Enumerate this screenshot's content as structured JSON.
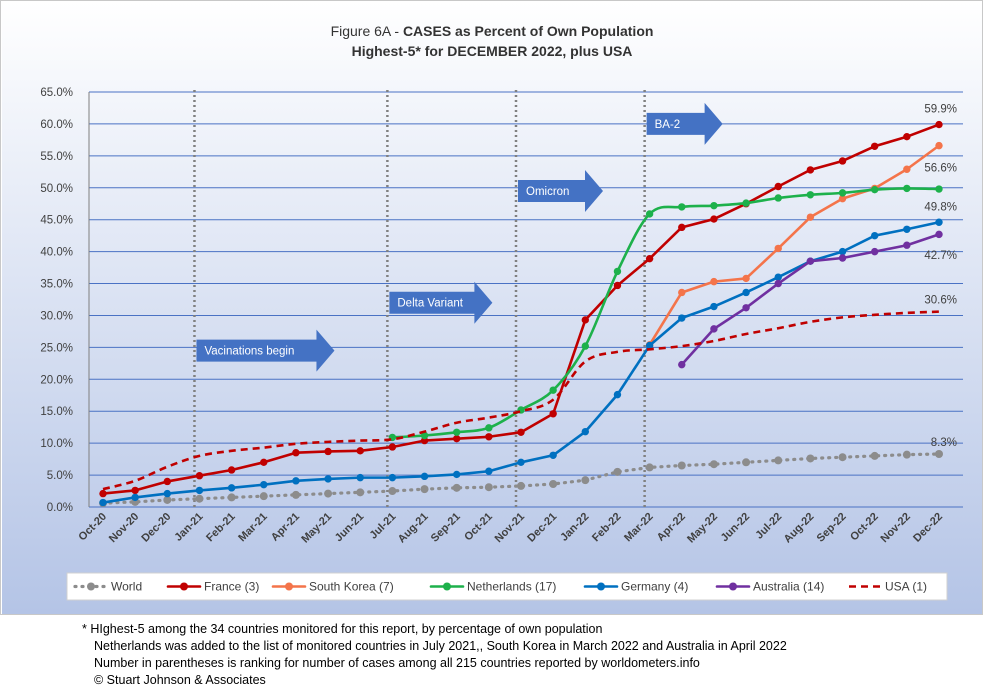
{
  "chart_data": {
    "type": "line",
    "title_line1_prefix": "Figure 6A - ",
    "title_line1_bold": "CASES as Percent of Own Population",
    "title_line2": "Highest-5* for DECEMBER 2022, plus USA",
    "categories": [
      "Oct-20",
      "Nov-20",
      "Dec-20",
      "Jan-21",
      "Feb-21",
      "Mar-21",
      "Apr-21",
      "May-21",
      "Jun-21",
      "Jul-21",
      "Aug-21",
      "Sep-21",
      "Oct-21",
      "Nov-21",
      "Dec-21",
      "Jan-22",
      "Feb-22",
      "Mar-22",
      "Apr-22",
      "May-22",
      "Jun-22",
      "Jul-22",
      "Aug-22",
      "Sep-22",
      "Oct-22",
      "Nov-22",
      "Dec-22"
    ],
    "ylim": [
      0,
      65
    ],
    "ytick_step": 5,
    "ytick_labels": [
      "0.0%",
      "5.0%",
      "10.0%",
      "15.0%",
      "20.0%",
      "25.0%",
      "30.0%",
      "35.0%",
      "40.0%",
      "45.0%",
      "50.0%",
      "55.0%",
      "60.0%",
      "65.0%"
    ],
    "grid": true,
    "legend_position": "bottom",
    "series": [
      {
        "name": "World",
        "color": "#8c8c8c",
        "style": "dotted",
        "smooth": false,
        "values": [
          0.6,
          0.8,
          1.1,
          1.3,
          1.5,
          1.7,
          1.9,
          2.1,
          2.3,
          2.5,
          2.8,
          3.0,
          3.1,
          3.3,
          3.6,
          4.2,
          5.5,
          6.2,
          6.5,
          6.7,
          7.0,
          7.3,
          7.6,
          7.8,
          8.0,
          8.2,
          8.3
        ]
      },
      {
        "name": "France (3)",
        "color": "#c00000",
        "style": "solid",
        "smooth": false,
        "values": [
          2.1,
          2.6,
          4.0,
          4.9,
          5.8,
          7.0,
          8.5,
          8.7,
          8.8,
          9.4,
          10.4,
          10.7,
          11.0,
          11.7,
          14.6,
          29.3,
          34.7,
          38.9,
          43.8,
          45.1,
          47.5,
          50.2,
          52.8,
          54.2,
          56.5,
          58.0,
          59.9
        ]
      },
      {
        "name": "South Korea (7)",
        "color": "#f4744a",
        "style": "solid",
        "smooth": false,
        "values": [
          null,
          null,
          null,
          null,
          null,
          null,
          null,
          null,
          null,
          null,
          null,
          null,
          null,
          null,
          null,
          null,
          null,
          25.4,
          33.6,
          35.3,
          35.8,
          40.5,
          45.4,
          48.3,
          49.9,
          52.9,
          56.6
        ]
      },
      {
        "name": "Netherlands (17)",
        "color": "#1db14b",
        "style": "solid",
        "smooth": true,
        "values": [
          null,
          null,
          null,
          null,
          null,
          null,
          null,
          null,
          null,
          10.9,
          11.2,
          11.7,
          12.4,
          15.2,
          18.3,
          25.2,
          36.9,
          45.9,
          47.0,
          47.2,
          47.6,
          48.4,
          48.9,
          49.2,
          49.7,
          49.9,
          49.8
        ]
      },
      {
        "name": "Germany (4)",
        "color": "#0070c0",
        "style": "solid",
        "smooth": false,
        "values": [
          0.7,
          1.5,
          2.1,
          2.6,
          3.0,
          3.5,
          4.1,
          4.4,
          4.6,
          4.6,
          4.8,
          5.1,
          5.6,
          7.0,
          8.1,
          11.8,
          17.6,
          25.3,
          29.6,
          31.4,
          33.6,
          36.0,
          38.5,
          40.0,
          42.5,
          43.5,
          44.6
        ]
      },
      {
        "name": "Australia (14)",
        "color": "#7030a0",
        "style": "solid",
        "smooth": false,
        "values": [
          null,
          null,
          null,
          null,
          null,
          null,
          null,
          null,
          null,
          null,
          null,
          null,
          null,
          null,
          null,
          null,
          null,
          null,
          22.3,
          27.9,
          31.2,
          35.0,
          38.5,
          39.0,
          40.0,
          41.0,
          42.7
        ]
      },
      {
        "name": "USA (1)",
        "color": "#c00000",
        "style": "dashed",
        "smooth": true,
        "values": [
          2.8,
          4.1,
          6.3,
          8.0,
          8.8,
          9.3,
          9.9,
          10.2,
          10.4,
          10.6,
          11.8,
          13.2,
          14.0,
          15.0,
          16.8,
          22.8,
          24.3,
          24.7,
          25.2,
          26.0,
          27.1,
          28.0,
          29.0,
          29.7,
          30.1,
          30.4,
          30.6
        ]
      }
    ],
    "end_labels": [
      {
        "text": "59.9%",
        "value": 59.9,
        "anchor_value": 62.4
      },
      {
        "text": "56.6%",
        "value": 56.6,
        "anchor_value": 53.2
      },
      {
        "text": "49.8%",
        "value": 49.8,
        "anchor_value": 47.1
      },
      {
        "text": "42.7%",
        "value": 42.7,
        "anchor_value": 39.5
      },
      {
        "text": "30.6%",
        "value": 30.6,
        "anchor_value": 32.5
      },
      {
        "text": "8.3%",
        "value": 8.3,
        "anchor_value": 10.2
      }
    ],
    "annotations": [
      {
        "text": "Vacinations begin",
        "line_at_index": 3,
        "arrow_y_value": 24.5
      },
      {
        "text": "Delta Variant",
        "line_at_index": 9,
        "arrow_y_value": 32.0
      },
      {
        "text": "Omicron",
        "line_at_index": 13,
        "arrow_y_value": 49.5
      },
      {
        "text": "BA-2",
        "line_at_index": 17,
        "arrow_y_value": 60.0
      }
    ],
    "colors": {
      "plot_gradient_top": "#ffffff",
      "plot_gradient_bottom": "#b4c4e6",
      "gridline": "#4a72c4",
      "arrow_fill": "#4472c4",
      "annotation_line": "#808080"
    }
  },
  "footnotes": [
    "* HIghest-5 among the 34 countries monitored for this report, by percentage of own population",
    "Netherlands was added to the list of monitored countries in July 2021,, South Korea in March 2022 and Australia in April 2022",
    "Number in parentheses is ranking for number of cases among all 215 countries reported by worldometers.info",
    "© Stuart Johnson & Associates"
  ]
}
